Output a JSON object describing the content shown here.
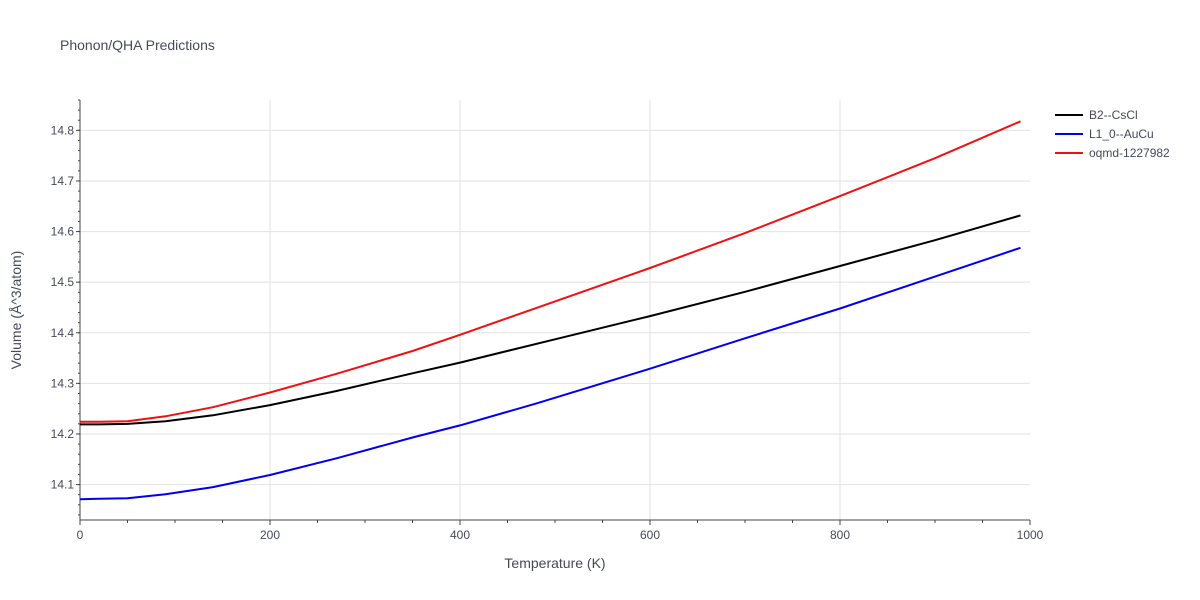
{
  "chart_data": {
    "type": "line",
    "title": "Phonon/QHA Predictions",
    "xlabel": "Temperature (K)",
    "ylabel": "Volume (Å^3/atom)",
    "xlim": [
      0,
      1000
    ],
    "ylim": [
      14.03,
      14.86
    ],
    "x_ticks": [
      0,
      200,
      400,
      600,
      800,
      1000
    ],
    "y_ticks": [
      14.1,
      14.2,
      14.3,
      14.4,
      14.5,
      14.6,
      14.7,
      14.8
    ],
    "x_tick_labels": [
      "0",
      "200",
      "400",
      "600",
      "800",
      "1000"
    ],
    "y_tick_labels": [
      "14.1",
      "14.2",
      "14.3",
      "14.4",
      "14.5",
      "14.6",
      "14.7",
      "14.8"
    ],
    "grid": true,
    "legend_position": "top-right, outside plot area",
    "series": [
      {
        "name": "B2--CsCl",
        "color": "#000000",
        "x": [
          0,
          20,
          50,
          90,
          140,
          200,
          270,
          350,
          400,
          500,
          600,
          700,
          800,
          900,
          990
        ],
        "y": [
          14.219,
          14.219,
          14.22,
          14.225,
          14.237,
          14.257,
          14.285,
          14.32,
          14.341,
          14.387,
          14.433,
          14.481,
          14.532,
          14.583,
          14.632
        ]
      },
      {
        "name": "L1_0--AuCu",
        "color": "#0000ee",
        "x": [
          0,
          20,
          50,
          90,
          140,
          200,
          270,
          350,
          400,
          480,
          600,
          700,
          800,
          900,
          990
        ],
        "y": [
          14.071,
          14.072,
          14.073,
          14.081,
          14.095,
          14.119,
          14.152,
          14.193,
          14.217,
          14.26,
          14.329,
          14.389,
          14.448,
          14.511,
          14.568
        ]
      },
      {
        "name": "oqmd-1227982",
        "color": "#ee1111",
        "x": [
          0,
          20,
          50,
          90,
          140,
          200,
          270,
          350,
          400,
          500,
          600,
          700,
          800,
          900,
          990
        ],
        "y": [
          14.224,
          14.224,
          14.225,
          14.235,
          14.253,
          14.282,
          14.319,
          14.364,
          14.396,
          14.462,
          14.528,
          14.597,
          14.67,
          14.745,
          14.818
        ]
      }
    ]
  }
}
